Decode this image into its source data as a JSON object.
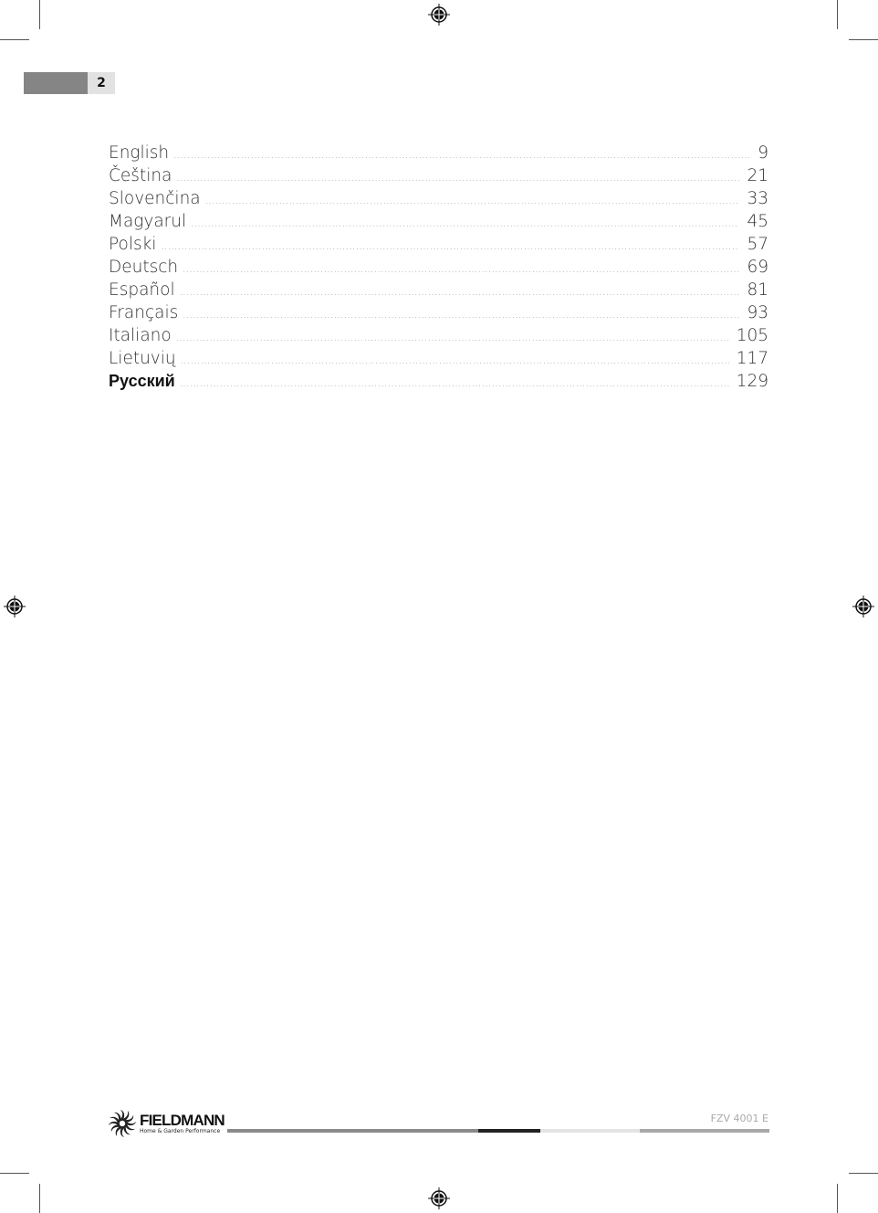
{
  "page_number": "2",
  "toc": [
    {
      "language": "English",
      "page": "9"
    },
    {
      "language": "Čeština",
      "page": "21"
    },
    {
      "language": "Slovenčina",
      "page": "33"
    },
    {
      "language": "Magyarul",
      "page": "45"
    },
    {
      "language": "Polski",
      "page": "57"
    },
    {
      "language": "Deutsch",
      "page": "69"
    },
    {
      "language": "Español",
      "page": "81"
    },
    {
      "language": "Français",
      "page": "93"
    },
    {
      "language": "Italiano",
      "page": "105"
    },
    {
      "language": "Lietuvių",
      "page": "117"
    },
    {
      "language": "Русский",
      "page": "129"
    }
  ],
  "footer": {
    "brand": "FIELDMANN",
    "tagline": "Home & Garden Performance",
    "model": "FZV 4001 E"
  },
  "colors": {
    "page_bar": "#858585",
    "page_num_bg": "#e2e2e2",
    "footer_accent": "#222222"
  }
}
